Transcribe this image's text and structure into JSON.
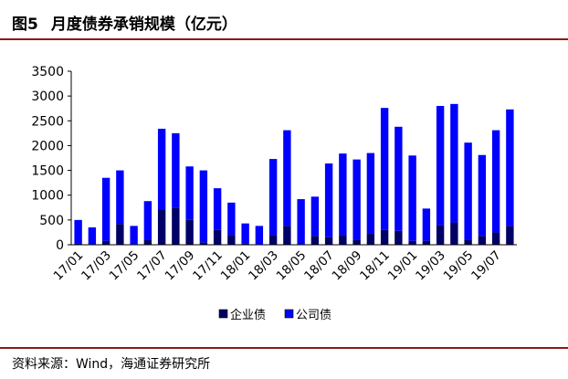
{
  "figure": {
    "label": "图5",
    "title": "月度债券承销规模（亿元）"
  },
  "source": "资料来源：Wind，海通证券研究所",
  "chart_data": {
    "type": "bar",
    "stacked": true,
    "categories": [
      "17/01",
      "17/02",
      "17/03",
      "17/04",
      "17/05",
      "17/06",
      "17/07",
      "17/08",
      "17/09",
      "17/10",
      "17/11",
      "17/12",
      "18/01",
      "18/02",
      "18/03",
      "18/04",
      "18/05",
      "18/06",
      "18/07",
      "18/08",
      "18/09",
      "18/10",
      "18/11",
      "18/12",
      "19/01",
      "19/02",
      "19/03",
      "19/04",
      "19/05",
      "19/06",
      "19/07",
      "19/08"
    ],
    "tick_labels": [
      "17/01",
      "",
      "17/03",
      "",
      "17/05",
      "",
      "17/07",
      "",
      "17/09",
      "",
      "17/11",
      "",
      "18/01",
      "",
      "18/03",
      "",
      "18/05",
      "",
      "18/07",
      "",
      "18/09",
      "",
      "18/11",
      "",
      "19/01",
      "",
      "19/03",
      "",
      "19/05",
      "",
      "19/07",
      ""
    ],
    "series": [
      {
        "name": "企业债",
        "color": "#000066",
        "values": [
          30,
          10,
          80,
          420,
          10,
          100,
          700,
          750,
          500,
          50,
          300,
          200,
          30,
          10,
          200,
          380,
          10,
          180,
          150,
          200,
          100,
          220,
          300,
          280,
          80,
          80,
          400,
          450,
          100,
          180,
          250,
          380
        ]
      },
      {
        "name": "公司债",
        "color": "#0000ff",
        "values": [
          470,
          340,
          1270,
          1080,
          370,
          780,
          1640,
          1500,
          1080,
          1450,
          840,
          650,
          400,
          370,
          1530,
          1930,
          910,
          790,
          1490,
          1640,
          1620,
          1630,
          2460,
          2100,
          1720,
          650,
          2400,
          2390,
          1960,
          1630,
          2060,
          2350
        ]
      }
    ],
    "ylim": [
      0,
      3500
    ],
    "yticks": [
      0,
      500,
      1000,
      1500,
      2000,
      2500,
      3000,
      3500
    ],
    "grid": false,
    "legend_position": "bottom"
  }
}
